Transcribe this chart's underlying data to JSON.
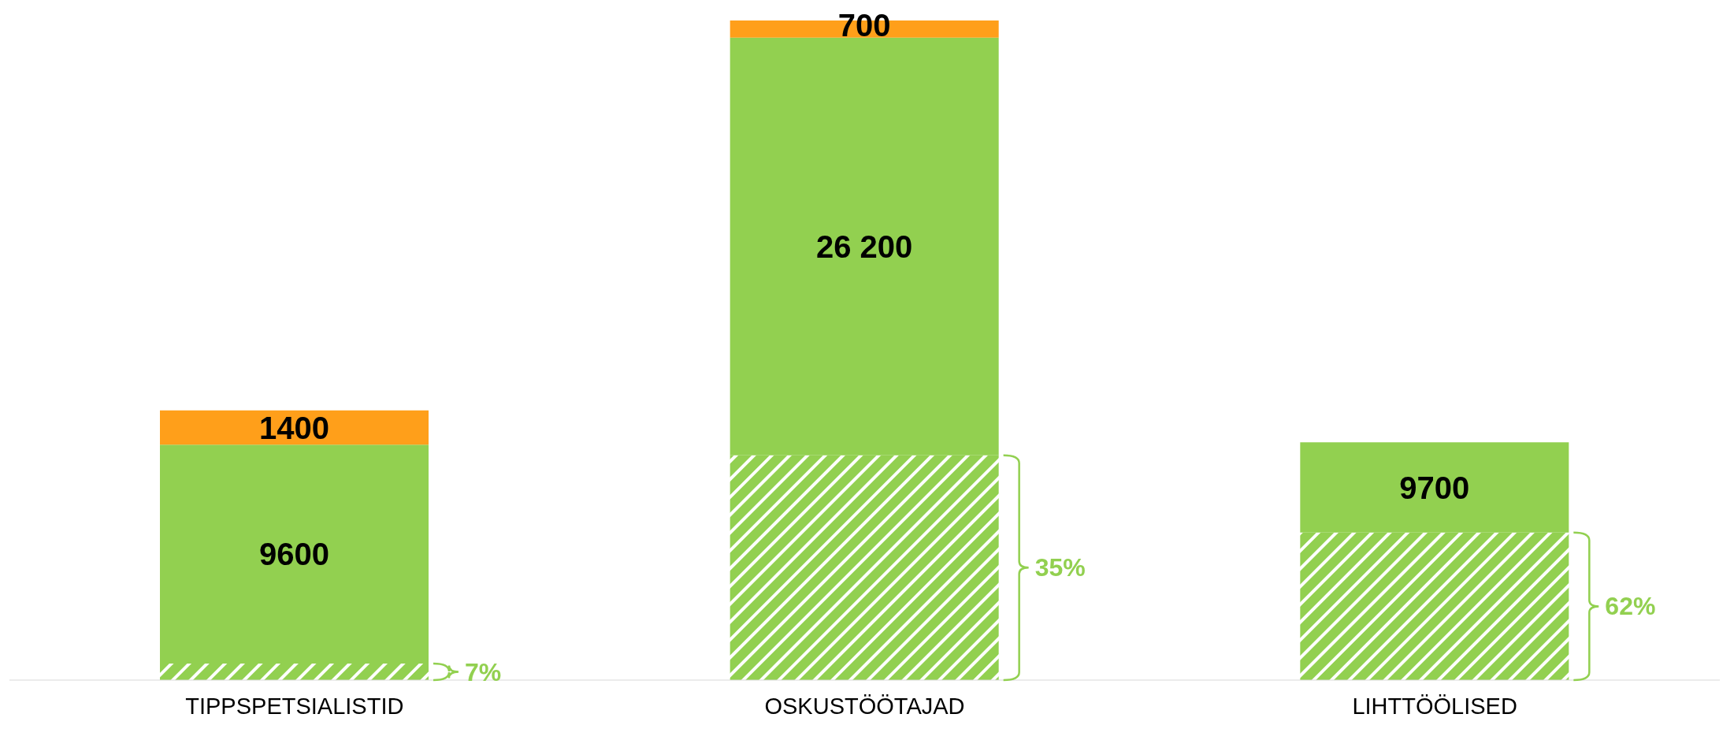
{
  "chart_data": {
    "type": "bar",
    "stacked": true,
    "categories": [
      "TIPPSPETSIALISTID",
      "OSKUSTÖÖTAJAD",
      "LIHTTÖÖLISED"
    ],
    "series": [
      {
        "color": "#92d050",
        "values": [
          672,
          9170,
          6014
        ]
      },
      {
        "color": "#92d050",
        "values": [
          8928,
          17030,
          3686
        ]
      },
      {
        "color": "#ff9f1a",
        "values": [
          1400,
          700,
          null
        ],
        "value_labels": [
          "1400",
          "700",
          null
        ]
      }
    ],
    "annotations": [
      "7%",
      "35%",
      "62%",
      "9600",
      "26 200",
      "9700"
    ],
    "legend": false,
    "grid": false
  }
}
